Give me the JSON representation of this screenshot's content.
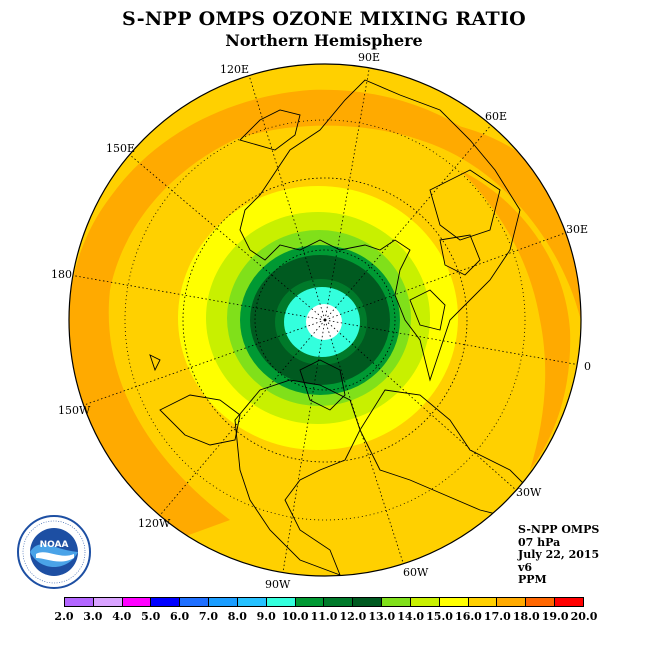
{
  "title": "S-NPP OMPS OZONE MIXING RATIO",
  "subtitle": "Northern Hemisphere",
  "longitude_labels": [
    "90E",
    "60E",
    "30E",
    "0",
    "30W",
    "60W",
    "90W",
    "120W",
    "150W",
    "180",
    "150E",
    "120E"
  ],
  "info": {
    "instrument": "S-NPP OMPS",
    "level": "07 hPa",
    "date": "July 22, 2015",
    "version": "v6",
    "units": "PPM"
  },
  "logo": {
    "text": "NOAA",
    "ring_text": "NATIONAL OCEANIC AND ATMOSPHERIC ADMINISTRATION · U.S. DEPARTMENT OF COMMERCE"
  },
  "colorbar": {
    "labels": [
      "2.0",
      "3.0",
      "4.0",
      "5.0",
      "6.0",
      "7.0",
      "8.0",
      "9.0",
      "10.0",
      "11.0",
      "12.0",
      "13.0",
      "14.0",
      "15.0",
      "16.0",
      "17.0",
      "18.0",
      "19.0",
      "20.0"
    ],
    "colors": [
      "#b366ff",
      "#d9a3ff",
      "#ff00ff",
      "#0000ff",
      "#1e6fff",
      "#1a9dff",
      "#25c1ff",
      "#33ffdd",
      "#009933",
      "#007a2a",
      "#005a20",
      "#80e01a",
      "#c8f000",
      "#ffff00",
      "#ffd000",
      "#ffaa00",
      "#ff6600",
      "#ff0000",
      "#8b5a3c"
    ]
  },
  "map_fields": {
    "projection": "north-polar-stereographic",
    "contour_levels_ppm": [
      9.0,
      10.0,
      11.0,
      12.0,
      13.0,
      14.0,
      15.0,
      16.0,
      17.0
    ],
    "pole_value": "missing"
  }
}
